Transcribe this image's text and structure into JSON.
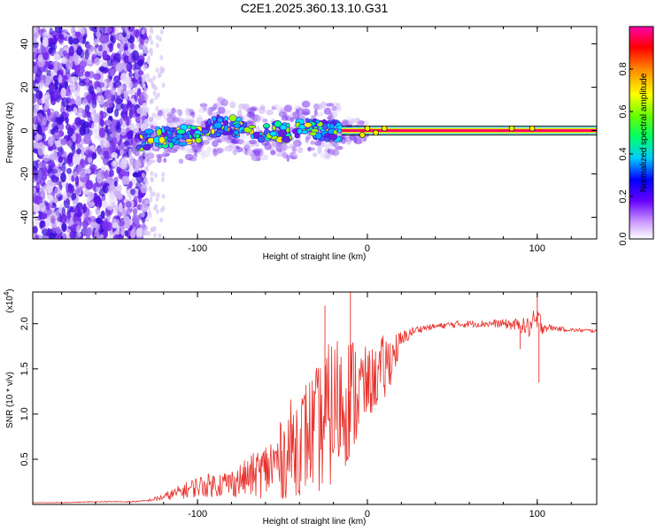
{
  "title": "C2E1.2025.360.13.10.G31",
  "colors": {
    "line": "#e8302a",
    "ridge": "#ff0066",
    "spec_low": "#d9c8f5",
    "spec_mid": "#6a1fe0",
    "spec_hi": "#00e0ff"
  },
  "chart_data": [
    {
      "type": "heatmap",
      "title": "C2E1.2025.360.13.10.G31",
      "xlabel": "Height of straight line (km)",
      "ylabel": "Frequency (Hz)",
      "xlim": [
        -197,
        135
      ],
      "ylim": [
        -50,
        48
      ],
      "xticks": [
        -100,
        0,
        100
      ],
      "xtick_labels": [
        "-100",
        "0",
        "100"
      ],
      "yticks": [
        40,
        20,
        0,
        -20,
        -40
      ],
      "ytick_labels": [
        "40",
        "20",
        "0",
        "-20",
        "-40"
      ],
      "colorbar": {
        "label": "Normalized spectral amplitude",
        "range": [
          0,
          1
        ],
        "ticks": [
          0.0,
          0.2,
          0.4,
          0.6,
          0.8
        ],
        "tick_labels": [
          "0.0",
          "0.2",
          "0.4",
          "0.6",
          "0.8"
        ],
        "colormap": "rainbow"
      },
      "ridge": {
        "x": [
          -135,
          -120,
          -105,
          -95,
          -85,
          -75,
          -65,
          -55,
          -45,
          -35,
          -25,
          -15,
          -5,
          0,
          10,
          20,
          135
        ],
        "y": [
          -5,
          -3,
          -2,
          0,
          3,
          1,
          -2,
          0,
          -1,
          1,
          0,
          0,
          0,
          0,
          0,
          0,
          0
        ]
      }
    },
    {
      "type": "line",
      "xlabel": "Height of straight line (km)",
      "ylabel": "SNR (10 * v/v)",
      "y_multiplier": "(x10",
      "y_multiplier_exp": "4",
      "y_multiplier_close": ")",
      "xlim": [
        -197,
        135
      ],
      "ylim": [
        0,
        2.35
      ],
      "xticks": [
        -100,
        0,
        100
      ],
      "xtick_labels": [
        "-100",
        "0",
        "100"
      ],
      "yticks": [
        0.5,
        1.0,
        1.5,
        2.0
      ],
      "ytick_labels": [
        "0.5",
        "1.0",
        "1.5",
        "2.0"
      ],
      "series": [
        {
          "name": "SNR",
          "x": [
            -197,
            -180,
            -160,
            -140,
            -130,
            -120,
            -110,
            -100,
            -90,
            -80,
            -70,
            -60,
            -50,
            -45,
            -40,
            -35,
            -30,
            -25,
            -20,
            -15,
            -10,
            -5,
            0,
            5,
            10,
            15,
            20,
            25,
            30,
            40,
            50,
            60,
            70,
            80,
            90,
            95,
            100,
            105,
            110,
            120,
            135
          ],
          "values": [
            0.02,
            0.02,
            0.03,
            0.03,
            0.04,
            0.08,
            0.14,
            0.2,
            0.22,
            0.24,
            0.3,
            0.38,
            0.5,
            0.62,
            0.7,
            0.78,
            0.82,
            0.9,
            1.05,
            1.15,
            1.2,
            1.25,
            1.32,
            1.4,
            1.5,
            1.65,
            1.8,
            1.9,
            1.94,
            1.97,
            1.99,
            2.0,
            2.0,
            2.0,
            1.98,
            1.96,
            2.02,
            1.96,
            1.95,
            1.93,
            1.92
          ],
          "noise": [
            0.0,
            0.003,
            0.005,
            0.006,
            0.01,
            0.04,
            0.08,
            0.12,
            0.14,
            0.16,
            0.22,
            0.32,
            0.45,
            0.55,
            0.6,
            0.65,
            0.7,
            0.8,
            0.85,
            0.8,
            0.7,
            0.6,
            0.4,
            0.35,
            0.4,
            0.25,
            0.12,
            0.06,
            0.04,
            0.03,
            0.04,
            0.04,
            0.04,
            0.05,
            0.08,
            0.12,
            0.18,
            0.05,
            0.03,
            0.02,
            0.02
          ]
        }
      ]
    }
  ]
}
